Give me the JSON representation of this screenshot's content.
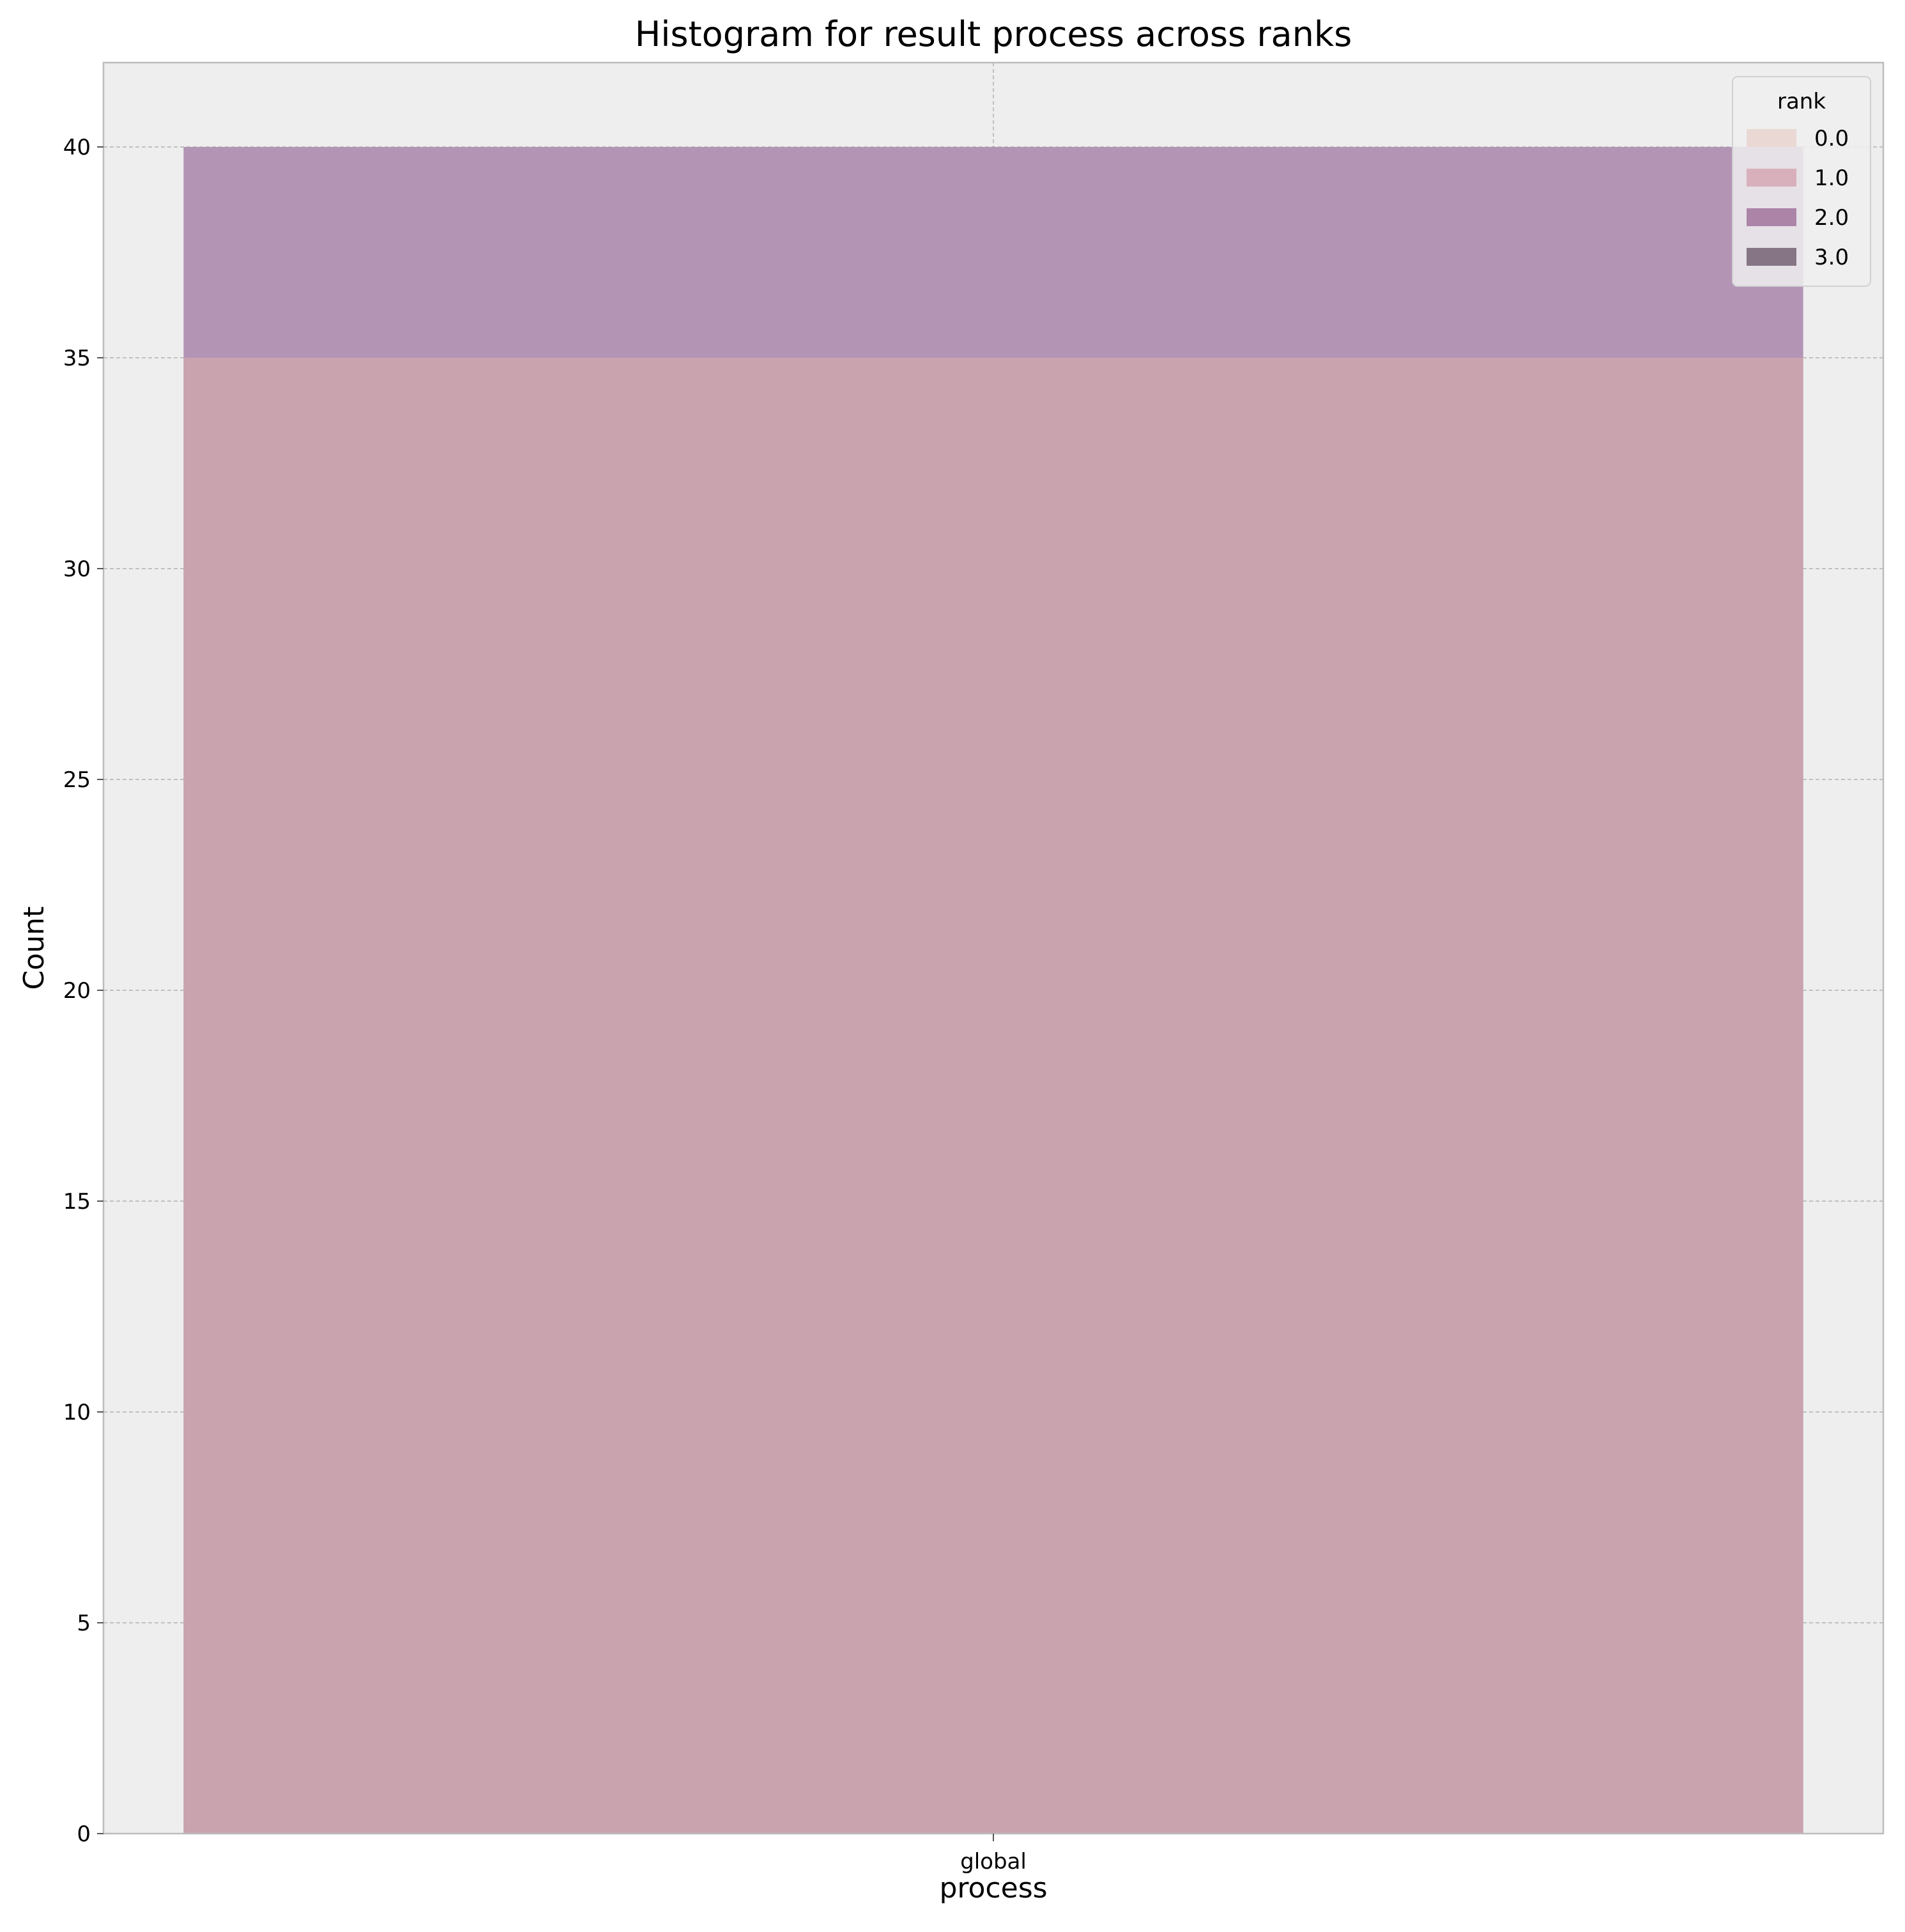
{
  "chart_data": {
    "type": "bar",
    "title": "Histogram for result process across ranks",
    "xlabel": "process",
    "ylabel": "Count",
    "categories": [
      "global"
    ],
    "ylim": [
      0,
      42
    ],
    "yticks": [
      0,
      5,
      10,
      15,
      20,
      25,
      30,
      35,
      40
    ],
    "grid": true,
    "legend": {
      "title": "rank",
      "placement": "top-right",
      "entries": [
        {
          "label": "0.0",
          "color": "#ead8d4"
        },
        {
          "label": "1.0",
          "color": "#d8b0bb"
        },
        {
          "label": "2.0",
          "color": "#ab84a8"
        },
        {
          "label": "3.0",
          "color": "#857585"
        }
      ]
    },
    "series": [
      {
        "name": "0.0",
        "values": [
          35
        ],
        "color": "#efd9d4"
      },
      {
        "name": "1.0",
        "values": [
          35
        ],
        "color": "#c795a6"
      },
      {
        "name": "2.0",
        "values": [
          40
        ],
        "color": "#b394b5"
      },
      {
        "name": "3.0",
        "values": [
          0
        ],
        "color": "#7a6479"
      }
    ],
    "colors": {
      "plot_background": "#eeeeee",
      "grid": "#b0b0b0",
      "overlap_fill": "#c9a3ae"
    }
  }
}
